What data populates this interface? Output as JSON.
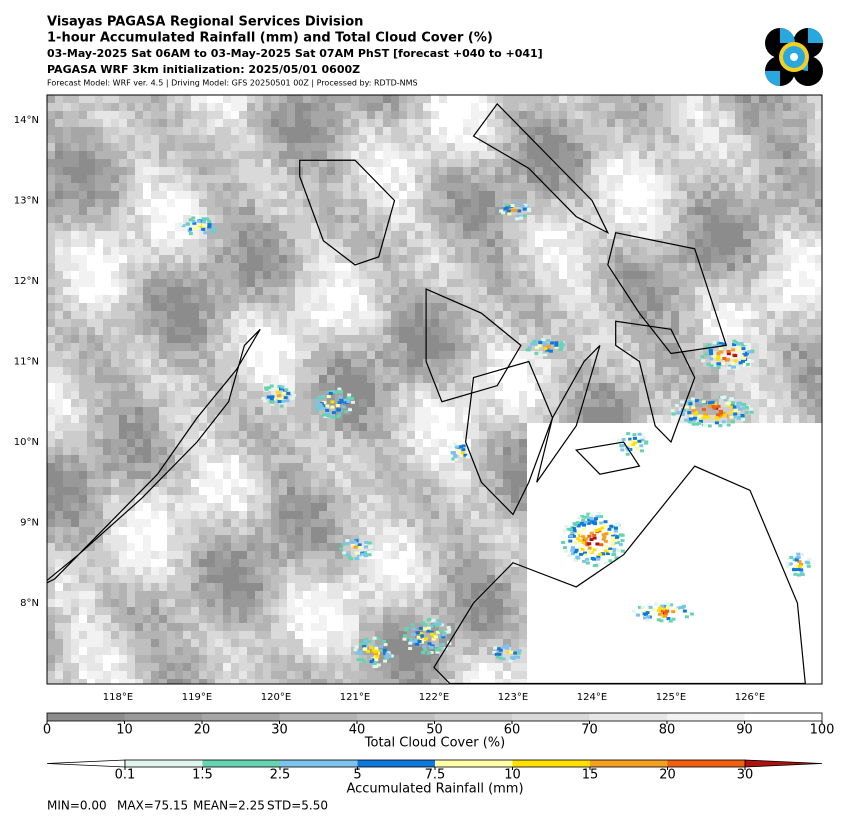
{
  "header": {
    "lines": [
      "Visayas PAGASA Regional Services Division",
      "1-hour Accumulated Rainfall (mm) and Total Cloud Cover (%)",
      "03-May-2025 Sat 06AM to 03-May-2025 Sat 07AM PhST [forecast +040 to +041]",
      "PAGASA WRF 3km initialization: 2025/05/01 0600Z",
      "Forecast Model: WRF ver. 4.5 | Driving Model: GFS 20250501 00Z | Processed by: RDTD-NMS"
    ]
  },
  "map": {
    "lat_labels": [
      "14°N",
      "13°N",
      "12°N",
      "11°N",
      "10°N",
      "9°N",
      "8°N"
    ],
    "lon_labels": [
      "118°E",
      "119°E",
      "120°E",
      "121°E",
      "122°E",
      "123°E",
      "124°E",
      "125°E",
      "126°E"
    ]
  },
  "cloud_colorbar": {
    "label": "Total Cloud Cover (%)",
    "ticks": [
      0,
      10,
      20,
      30,
      40,
      50,
      60,
      70,
      80,
      90,
      100
    ],
    "colors": [
      "#8c8c8c",
      "#999999",
      "#a6a6a6",
      "#b3b3b3",
      "#bfbfbf",
      "#cccccc",
      "#d9d9d9",
      "#e6e6e6",
      "#f2f2f2",
      "#ffffff"
    ]
  },
  "rain_colorbar": {
    "label": "Accumulated Rainfall (mm)",
    "ticks": [
      0.1,
      1.5,
      2.5,
      5,
      7.5,
      10,
      15,
      20,
      30
    ],
    "colors": [
      "#ffffff",
      "#e0f5ee",
      "#66d4b0",
      "#7ec3ee",
      "#0f78dc",
      "#ffffa8",
      "#ffe000",
      "#f5a020",
      "#f06010",
      "#b01010"
    ]
  },
  "stats": [
    "MIN=0.00",
    "MAX=75.15",
    "MEAN=2.25",
    "STD=5.50"
  ]
}
